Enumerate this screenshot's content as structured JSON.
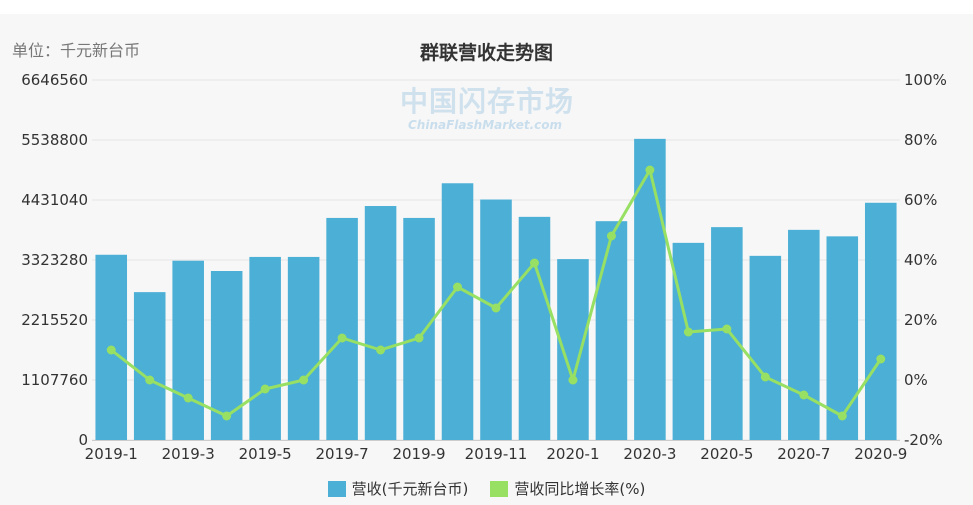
{
  "unit_label": "单位：千元新台币",
  "title": "群联营收走势图",
  "watermark": {
    "cn": "中国闪存市场",
    "en": "ChinaFlashMarket.com"
  },
  "colors": {
    "bar": "#4bafd6",
    "line": "#97e063",
    "grid": "#e6e6e6"
  },
  "legend": [
    {
      "label": "营收(千元新台币)",
      "color": "#4bafd6"
    },
    {
      "label": "营收同比增长率(%)",
      "color": "#97e063"
    }
  ],
  "chart_data": {
    "type": "bar",
    "title": "群联营收走势图",
    "categories": [
      "2019-1",
      "2019-2",
      "2019-3",
      "2019-4",
      "2019-5",
      "2019-6",
      "2019-7",
      "2019-8",
      "2019-9",
      "2019-10",
      "2019-11",
      "2019-12",
      "2020-1",
      "2020-2",
      "2020-3",
      "2020-4",
      "2020-5",
      "2020-6",
      "2020-7",
      "2020-8",
      "2020-9"
    ],
    "x_tick_labels": [
      "2019-1",
      "2019-3",
      "2019-5",
      "2019-7",
      "2019-9",
      "2019-11",
      "2020-1",
      "2020-3",
      "2020-5",
      "2020-7",
      "2020-9"
    ],
    "series": [
      {
        "name": "营收(千元新台币)",
        "type": "bar",
        "axis": "left",
        "values": [
          3420000,
          2730000,
          3310000,
          3120000,
          3380000,
          3380000,
          4100000,
          4320000,
          4100000,
          4740000,
          4440000,
          4120000,
          3340000,
          4040000,
          5560000,
          3640000,
          3930000,
          3400000,
          3880000,
          3760000,
          4380000
        ]
      },
      {
        "name": "营收同比增长率(%)",
        "type": "line",
        "axis": "right",
        "values": [
          10,
          0,
          -6,
          -12,
          -3,
          0,
          14,
          10,
          14,
          31,
          24,
          39,
          0,
          48,
          70,
          16,
          17,
          1,
          -5,
          -12,
          7
        ]
      }
    ],
    "y_left": {
      "min": 0,
      "max": 6646560,
      "ticks": [
        0,
        1107760,
        2215520,
        3323280,
        4431040,
        5538800,
        6646560
      ]
    },
    "y_right": {
      "min": -20,
      "max": 100,
      "ticks": [
        "-20%",
        "0%",
        "20%",
        "40%",
        "60%",
        "80%",
        "100%"
      ]
    },
    "grid": true,
    "legend_position": "bottom"
  }
}
